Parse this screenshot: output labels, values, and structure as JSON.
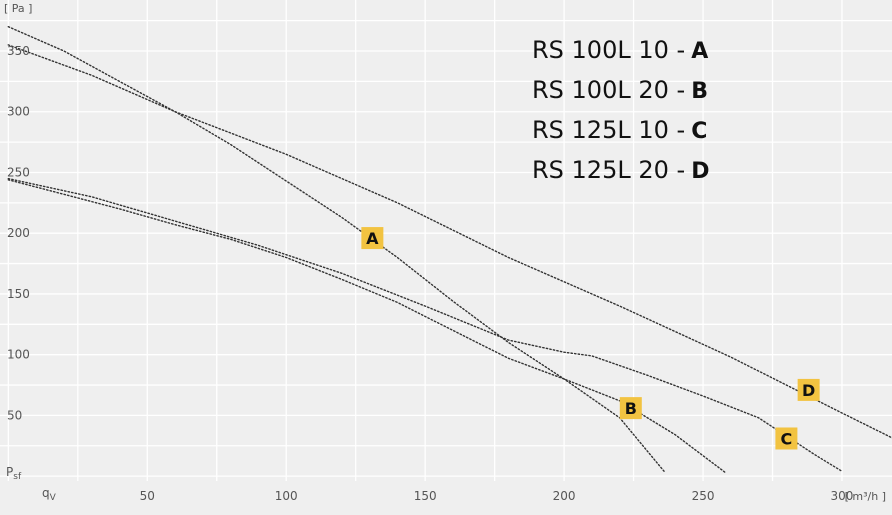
{
  "chart_data": {
    "type": "line",
    "y_unit": "[ Pa ]",
    "x_unit": "[ m³/h ]",
    "y_symbol": {
      "main": "P",
      "sub": "sf"
    },
    "x_symbol": {
      "main": "q",
      "sub": "V"
    },
    "xlim": [
      -3,
      318
    ],
    "ylim": [
      -4,
      392
    ],
    "x_ticks": [
      50,
      100,
      150,
      200,
      250,
      300
    ],
    "y_ticks": [
      50,
      100,
      150,
      200,
      250,
      300,
      350
    ],
    "grid": true,
    "legend": [
      {
        "model": "RS 100L 10 -",
        "letter": "A"
      },
      {
        "model": "RS 100L 20 -",
        "letter": "B"
      },
      {
        "model": "RS 125L 10 -",
        "letter": "C"
      },
      {
        "model": "RS 125L 20 -",
        "letter": "D"
      }
    ],
    "tag_color": "#f2c341",
    "line_color": "#333333",
    "series": [
      {
        "tag": "A",
        "tag_at": [
          131,
          196
        ],
        "points": [
          [
            0,
            370
          ],
          [
            20,
            350
          ],
          [
            40,
            325
          ],
          [
            60,
            300
          ],
          [
            80,
            273
          ],
          [
            100,
            243
          ],
          [
            120,
            213
          ],
          [
            140,
            180
          ],
          [
            160,
            144
          ],
          [
            180,
            110
          ],
          [
            200,
            80
          ],
          [
            220,
            48
          ],
          [
            236,
            4
          ]
        ]
      },
      {
        "tag": "B",
        "tag_at": [
          224,
          56
        ],
        "points": [
          [
            0,
            244
          ],
          [
            20,
            232
          ],
          [
            40,
            220
          ],
          [
            60,
            207
          ],
          [
            80,
            195
          ],
          [
            100,
            180
          ],
          [
            120,
            162
          ],
          [
            140,
            143
          ],
          [
            160,
            120
          ],
          [
            180,
            97
          ],
          [
            200,
            80
          ],
          [
            220,
            62
          ],
          [
            240,
            34
          ],
          [
            258,
            3
          ]
        ]
      },
      {
        "tag": "C",
        "tag_at": [
          280,
          31
        ],
        "points": [
          [
            0,
            245
          ],
          [
            30,
            230
          ],
          [
            60,
            210
          ],
          [
            90,
            190
          ],
          [
            120,
            167
          ],
          [
            150,
            140
          ],
          [
            180,
            112
          ],
          [
            200,
            102
          ],
          [
            210,
            99
          ],
          [
            230,
            83
          ],
          [
            250,
            66
          ],
          [
            270,
            48
          ],
          [
            290,
            18
          ],
          [
            300,
            4
          ]
        ]
      },
      {
        "tag": "D",
        "tag_at": [
          288,
          71
        ],
        "points": [
          [
            0,
            355
          ],
          [
            30,
            330
          ],
          [
            60,
            300
          ],
          [
            100,
            265
          ],
          [
            140,
            225
          ],
          [
            180,
            180
          ],
          [
            220,
            140
          ],
          [
            260,
            98
          ],
          [
            300,
            52
          ],
          [
            330,
            18
          ],
          [
            345,
            0
          ]
        ]
      }
    ]
  }
}
